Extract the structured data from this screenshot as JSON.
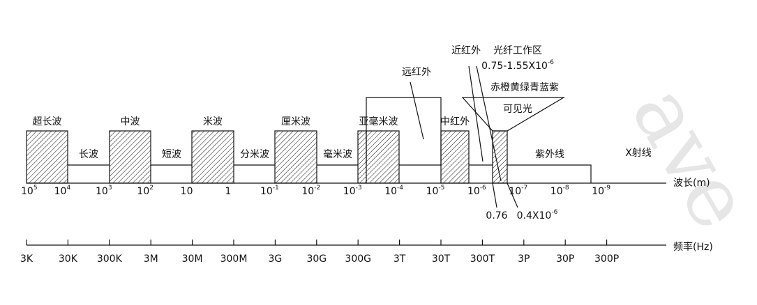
{
  "hatched_band_labels": [
    "超长波",
    "中波",
    "米波",
    "厘米波",
    "亚毫米波",
    "中红外"
  ],
  "gap_band_labels": [
    "长波",
    "短波",
    "分米波",
    "毫米波",
    "紫外线",
    "X射线"
  ],
  "far_infrared": "远红外",
  "visible": {
    "colors": "赤橙黄绿青蓝紫",
    "label": "可见光"
  },
  "near_infrared": "近红外",
  "fiber_window": {
    "label": "光纤工作区",
    "range": "0.75-1.55X10",
    "range_exp": "-6"
  },
  "visible_edges": [
    {
      "base": "0.76"
    },
    {
      "base": "0.4X10",
      "sup": "-6"
    }
  ],
  "wavelength_axis": {
    "label": "波长(m)",
    "ticks": [
      {
        "base": "10",
        "sup": "5"
      },
      {
        "base": "10",
        "sup": "4"
      },
      {
        "base": "10",
        "sup": "3"
      },
      {
        "base": "10",
        "sup": "2"
      },
      {
        "base": "10"
      },
      {
        "base": "1"
      },
      {
        "base": "10",
        "sup": "-1"
      },
      {
        "base": "10",
        "sup": "-2"
      },
      {
        "base": "10",
        "sup": "-3"
      },
      {
        "base": "10",
        "sup": "-4"
      },
      {
        "base": "10",
        "sup": "-5"
      },
      {
        "base": "10",
        "sup": "-6"
      },
      {
        "base": "10",
        "sup": "-7"
      },
      {
        "base": "10",
        "sup": "-8"
      },
      {
        "base": "10",
        "sup": "-9"
      }
    ]
  },
  "frequency_axis": {
    "label": "频率(Hz)",
    "ticks": [
      "3K",
      "30K",
      "300K",
      "3M",
      "30M",
      "300M",
      "3G",
      "30G",
      "300G",
      "3T",
      "30T",
      "300T",
      "3P",
      "30P",
      "300P"
    ]
  },
  "watermark": "ave"
}
